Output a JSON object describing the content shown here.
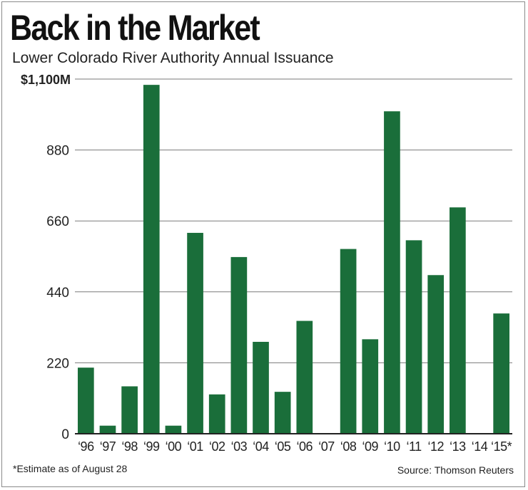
{
  "chart_data": {
    "type": "bar",
    "title": "Back in the Market",
    "subtitle": "Lower Colorado River Authority Annual Issuance",
    "xlabel": "",
    "ylabel": "",
    "ylim": [
      0,
      1100
    ],
    "y_ticks": [
      {
        "value": 0,
        "label": "0"
      },
      {
        "value": 220,
        "label": "220"
      },
      {
        "value": 440,
        "label": "440"
      },
      {
        "value": 660,
        "label": "660"
      },
      {
        "value": 880,
        "label": "880"
      },
      {
        "value": 1100,
        "label": "$1,100M"
      }
    ],
    "grid": true,
    "categories": [
      "‘96",
      "‘97",
      "‘98",
      "‘99",
      "‘00",
      "‘01",
      "‘02",
      "‘03",
      "‘04",
      "‘05",
      "‘06",
      "‘07",
      "‘08",
      "‘09",
      "‘10",
      "‘11",
      "‘12",
      "‘13",
      "‘14",
      "‘15*"
    ],
    "values": [
      205,
      25,
      147,
      1082,
      25,
      623,
      122,
      548,
      285,
      130,
      350,
      0,
      573,
      293,
      1000,
      600,
      492,
      702,
      0,
      373
    ],
    "colors": {
      "bar": "#1a6e3a",
      "grid": "#7a7a7a",
      "axis": "#222222",
      "text": "#222222"
    }
  },
  "footnote": "*Estimate as of August 28",
  "source": "Source: Thomson Reuters"
}
